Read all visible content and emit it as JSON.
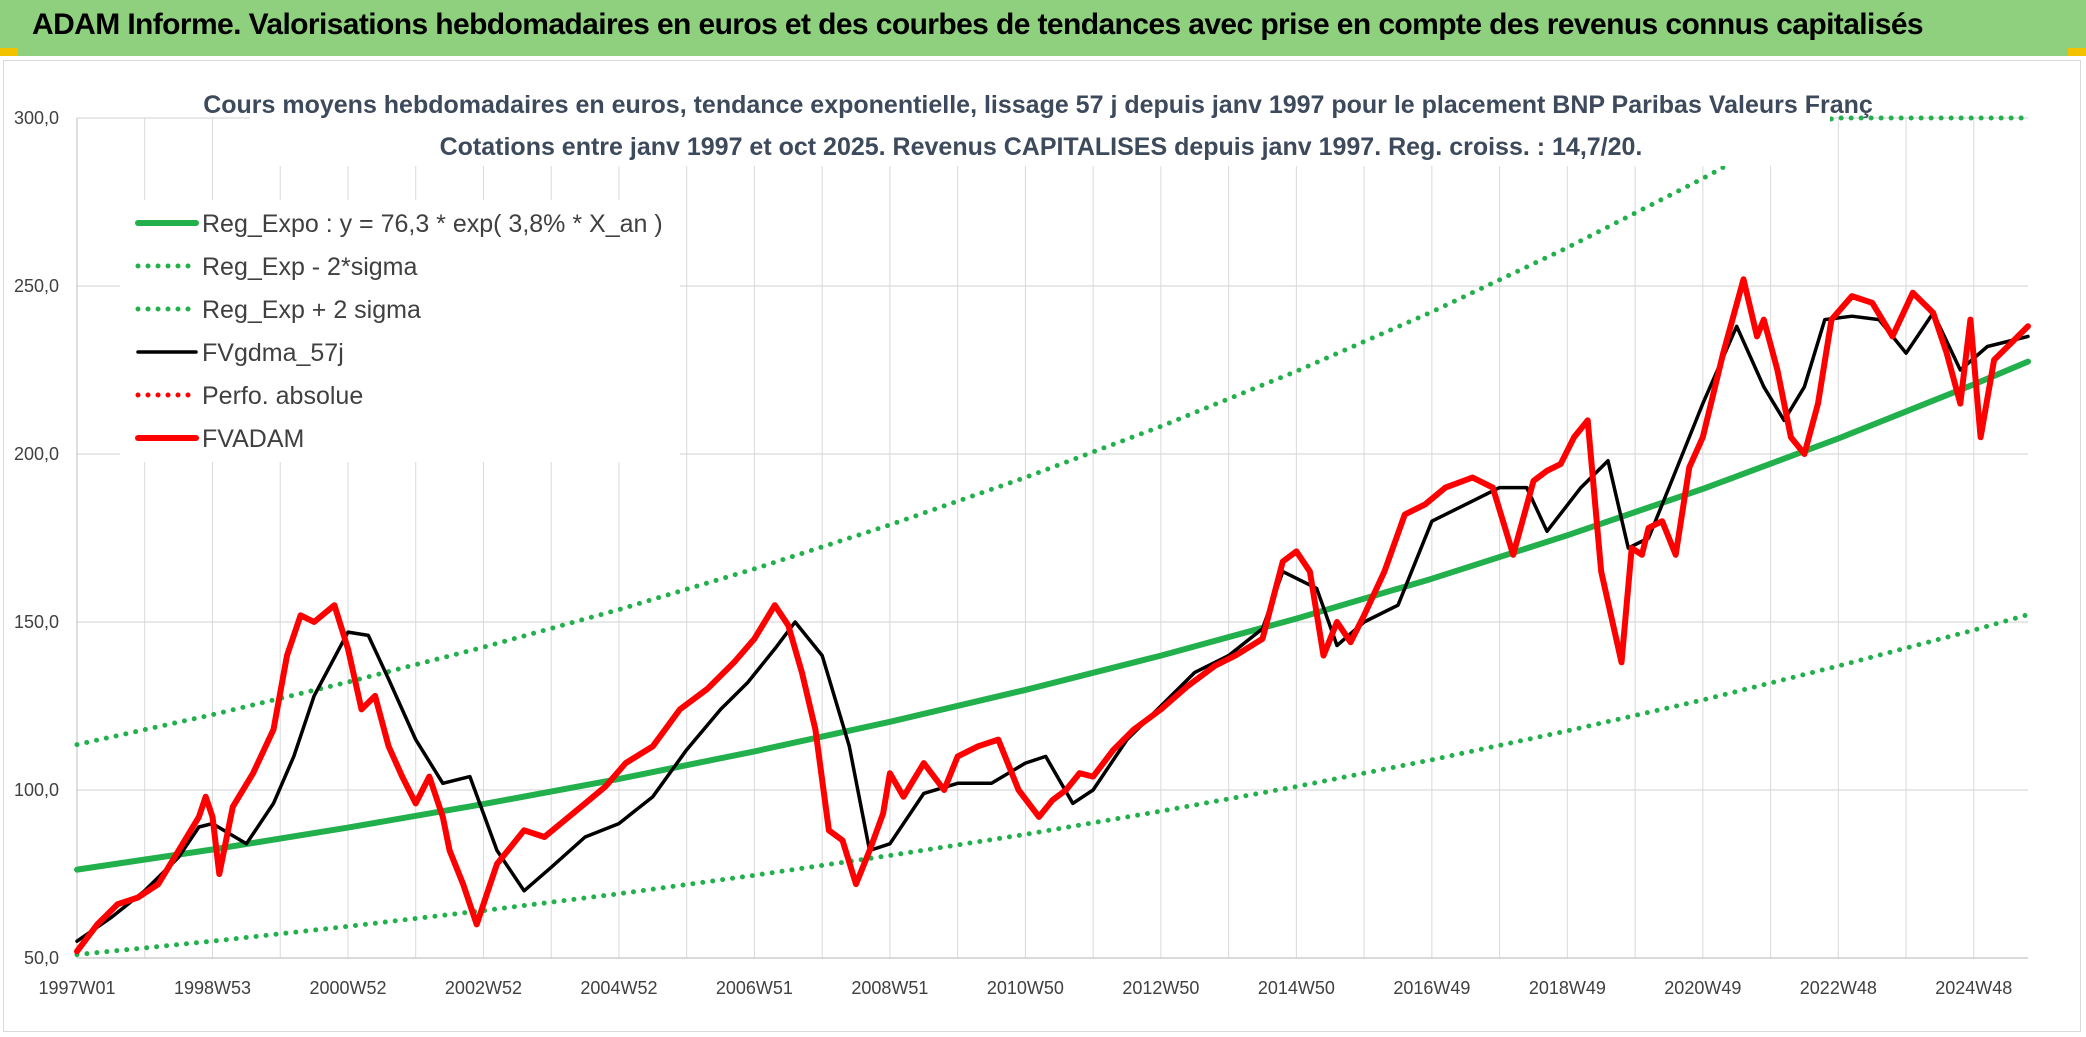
{
  "banner": {
    "title": "ADAM Informe. Valorisations hebdomadaires en euros et des courbes de tendances avec prise en compte des revenus connus capitalisés"
  },
  "colors": {
    "banner_bg": "#8ed07e",
    "green": "#21b04b",
    "red": "#ff0000",
    "black": "#000000",
    "grid": "#d9d9d9"
  },
  "chart_data": {
    "type": "line",
    "title": "Cours moyens hebdomadaires en euros, tendance exponentielle, lissage 57 j depuis janv 1997 pour le placement BNP Paribas Valeurs Franç",
    "subtitle": "Cotations entre janv 1997 et oct 2025. Revenus CAPITALISES depuis janv 1997. Reg. croiss. : 14,7/20.",
    "xlabel": "",
    "ylabel": "",
    "xlim": [
      1997.0,
      2025.8
    ],
    "ylim": [
      50,
      300
    ],
    "y_ticks": [
      50,
      100,
      150,
      200,
      250,
      300
    ],
    "y_tick_labels": [
      "50,0",
      "100,0",
      "150,0",
      "200,0",
      "250,0",
      "300,0"
    ],
    "x_ticks": [
      1997.0,
      1999.0,
      2001.0,
      2003.0,
      2005.0,
      2007.0,
      2009.0,
      2011.0,
      2013.0,
      2015.0,
      2017.0,
      2019.0,
      2021.0,
      2023.0,
      2025.0
    ],
    "x_tick_labels": [
      "1997W01",
      "1998W53",
      "2000W52",
      "2002W52",
      "2004W52",
      "2006W51",
      "2008W51",
      "2010W50",
      "2012W50",
      "2014W50",
      "2016W49",
      "2018W49",
      "2020W49",
      "2022W48",
      "2024W48"
    ],
    "legend_position": "top-left",
    "series": [
      {
        "name": "Reg_Expo : y = 76,3 * exp( 3,8% *  X_an )",
        "color": "#21b04b",
        "style": "solid-thick",
        "x": [
          1997,
          1999,
          2001,
          2003,
          2005,
          2007,
          2009,
          2011,
          2013,
          2015,
          2017,
          2019,
          2021,
          2023,
          2025,
          2025.8
        ],
        "y": [
          76.3,
          82.3,
          88.8,
          95.8,
          103.3,
          111.5,
          120.3,
          129.8,
          140.0,
          151.0,
          162.9,
          175.8,
          189.6,
          204.6,
          220.7,
          227.5
        ]
      },
      {
        "name": "Reg_Exp - 2*sigma",
        "color": "#21b04b",
        "style": "dotted",
        "x": [
          1997,
          1999,
          2001,
          2003,
          2005,
          2007,
          2009,
          2011,
          2013,
          2015,
          2017,
          2019,
          2021,
          2023,
          2025,
          2025.8
        ],
        "y": [
          51.0,
          55.0,
          59.4,
          64.1,
          69.1,
          74.6,
          80.5,
          86.8,
          93.7,
          101.0,
          109.0,
          117.6,
          126.8,
          136.9,
          147.6,
          152.2
        ]
      },
      {
        "name": "Reg_Exp + 2 sigma",
        "color": "#21b04b",
        "style": "dotted",
        "x": [
          1997,
          1999,
          2001,
          2003,
          2005,
          2007,
          2009,
          2011,
          2013,
          2015,
          2017,
          2019,
          2021,
          2022.5,
          2023,
          2025,
          2025.8
        ],
        "y": [
          113.5,
          122.4,
          132.1,
          142.5,
          153.7,
          165.8,
          178.9,
          193.0,
          208.2,
          224.6,
          242.3,
          261.4,
          282.0,
          298.5,
          300,
          300,
          300
        ]
      },
      {
        "name": "FVgdma_57j",
        "color": "#000000",
        "style": "solid",
        "x": [
          1997.0,
          1997.5,
          1998.0,
          1998.5,
          1998.8,
          1999.0,
          1999.5,
          1999.9,
          2000.2,
          2000.5,
          2001.0,
          2001.3,
          2001.6,
          2002.0,
          2002.4,
          2002.8,
          2003.2,
          2003.6,
          2004.0,
          2004.5,
          2005.0,
          2005.5,
          2006.0,
          2006.5,
          2006.9,
          2007.3,
          2007.6,
          2008.0,
          2008.4,
          2008.7,
          2009.0,
          2009.5,
          2010.0,
          2010.5,
          2011.0,
          2011.3,
          2011.7,
          2012.0,
          2012.5,
          2013.0,
          2013.5,
          2014.0,
          2014.5,
          2014.8,
          2015.3,
          2015.6,
          2016.0,
          2016.5,
          2017.0,
          2017.5,
          2018.0,
          2018.4,
          2018.7,
          2019.2,
          2019.6,
          2019.9,
          2020.2,
          2020.5,
          2021.0,
          2021.5,
          2021.9,
          2022.2,
          2022.5,
          2022.8,
          2023.2,
          2023.6,
          2024.0,
          2024.4,
          2024.8,
          2025.2,
          2025.8
        ],
        "y": [
          55,
          62,
          70,
          80,
          89,
          90,
          84,
          96,
          110,
          128,
          147,
          146,
          133,
          115,
          102,
          104,
          82,
          70,
          77,
          86,
          90,
          98,
          112,
          124,
          132,
          142,
          150,
          140,
          113,
          82,
          84,
          99,
          102,
          102,
          108,
          110,
          96,
          100,
          115,
          125,
          135,
          140,
          148,
          165,
          160,
          143,
          150,
          155,
          180,
          185,
          190,
          190,
          177,
          190,
          198,
          172,
          175,
          190,
          215,
          238,
          220,
          210,
          220,
          240,
          241,
          240,
          230,
          242,
          225,
          232,
          235
        ]
      },
      {
        "name": "Perfo. absolue",
        "color": "#ff0000",
        "style": "dotted",
        "x": [],
        "y": []
      },
      {
        "name": "FVADAM",
        "color": "#ff0000",
        "style": "solid-thick",
        "x": [
          1997.0,
          1997.3,
          1997.6,
          1997.9,
          1998.2,
          1998.5,
          1998.8,
          1998.9,
          1999.0,
          1999.1,
          1999.3,
          1999.6,
          1999.9,
          2000.1,
          2000.3,
          2000.5,
          2000.8,
          2001.0,
          2001.2,
          2001.4,
          2001.6,
          2001.8,
          2002.0,
          2002.2,
          2002.4,
          2002.5,
          2002.7,
          2002.9,
          2003.1,
          2003.2,
          2003.4,
          2003.6,
          2003.9,
          2004.2,
          2004.5,
          2004.8,
          2005.1,
          2005.5,
          2005.9,
          2006.3,
          2006.7,
          2007.0,
          2007.3,
          2007.5,
          2007.7,
          2007.9,
          2008.1,
          2008.3,
          2008.5,
          2008.7,
          2008.9,
          2009.0,
          2009.2,
          2009.5,
          2009.8,
          2010.0,
          2010.3,
          2010.6,
          2010.9,
          2011.2,
          2011.4,
          2011.6,
          2011.8,
          2012.0,
          2012.3,
          2012.6,
          2013.0,
          2013.4,
          2013.8,
          2014.1,
          2014.5,
          2014.8,
          2015.0,
          2015.2,
          2015.4,
          2015.6,
          2015.8,
          2016.0,
          2016.3,
          2016.6,
          2016.9,
          2017.2,
          2017.6,
          2017.9,
          2018.2,
          2018.5,
          2018.7,
          2018.9,
          2019.1,
          2019.3,
          2019.5,
          2019.8,
          2019.95,
          2020.1,
          2020.2,
          2020.4,
          2020.6,
          2020.8,
          2021.0,
          2021.3,
          2021.6,
          2021.8,
          2021.9,
          2022.1,
          2022.3,
          2022.5,
          2022.7,
          2022.9,
          2023.2,
          2023.5,
          2023.8,
          2024.1,
          2024.4,
          2024.6,
          2024.8,
          2024.95,
          2025.1,
          2025.3,
          2025.5,
          2025.8
        ],
        "y": [
          52,
          60,
          66,
          68,
          72,
          82,
          92,
          98,
          92,
          75,
          95,
          105,
          118,
          140,
          152,
          150,
          155,
          142,
          124,
          128,
          113,
          104,
          96,
          104,
          92,
          82,
          72,
          60,
          72,
          78,
          83,
          88,
          86,
          91,
          96,
          101,
          108,
          113,
          124,
          130,
          138,
          145,
          155,
          149,
          135,
          118,
          88,
          85,
          72,
          82,
          93,
          105,
          98,
          108,
          100,
          110,
          113,
          115,
          100,
          92,
          97,
          100,
          105,
          104,
          112,
          118,
          124,
          131,
          137,
          140,
          145,
          168,
          171,
          165,
          140,
          150,
          144,
          152,
          165,
          182,
          185,
          190,
          193,
          190,
          170,
          192,
          195,
          197,
          205,
          210,
          165,
          138,
          172,
          170,
          178,
          180,
          170,
          196,
          205,
          230,
          252,
          235,
          240,
          225,
          205,
          200,
          215,
          240,
          247,
          245,
          235,
          248,
          242,
          230,
          215,
          240,
          205,
          228,
          232,
          238
        ]
      }
    ]
  }
}
